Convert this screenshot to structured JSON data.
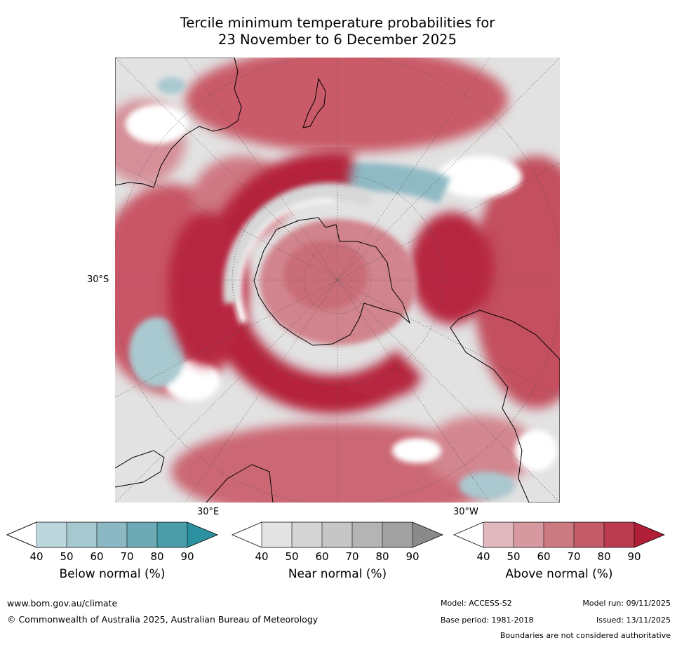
{
  "title": {
    "line1": "Tercile minimum temperature probabilities for",
    "line2": "23 November to 6 December 2025"
  },
  "map": {
    "projection": "south polar stereographic",
    "lat_label": "30°S",
    "lon_labels": {
      "east": "30°E",
      "west": "30°W"
    },
    "land_outline_color": "#000000"
  },
  "legends": [
    {
      "label": "Below normal (%)",
      "ticks": [
        "40",
        "50",
        "60",
        "70",
        "80",
        "90"
      ],
      "colors": [
        "#bcd6dc",
        "#a6c8cf",
        "#8cb8c3",
        "#6eaab6",
        "#4b9daa",
        "#2b91a1"
      ]
    },
    {
      "label": "Near normal (%)",
      "ticks": [
        "40",
        "50",
        "60",
        "70",
        "80",
        "90"
      ],
      "colors": [
        "#e3e3e3",
        "#d5d5d5",
        "#c6c6c6",
        "#b4b4b4",
        "#a1a1a1",
        "#8a8a8a"
      ]
    },
    {
      "label": "Above normal (%)",
      "ticks": [
        "40",
        "50",
        "60",
        "70",
        "80",
        "90"
      ],
      "colors": [
        "#e1b8bd",
        "#d6999f",
        "#cb7a82",
        "#c35b68",
        "#ba3c4e",
        "#b01e38"
      ]
    }
  ],
  "footer": {
    "url": "www.bom.gov.au/climate",
    "copyright": "© Commonwealth of Australia 2025, Australian Bureau of Meteorology",
    "model": "Model: ACCESS-S2",
    "base_period": "Base period: 1981-2018",
    "model_run": "Model run: 09/11/2025",
    "issued": "Issued: 13/11/2025",
    "disclaimer": "Boundaries are not considered authoritative"
  }
}
